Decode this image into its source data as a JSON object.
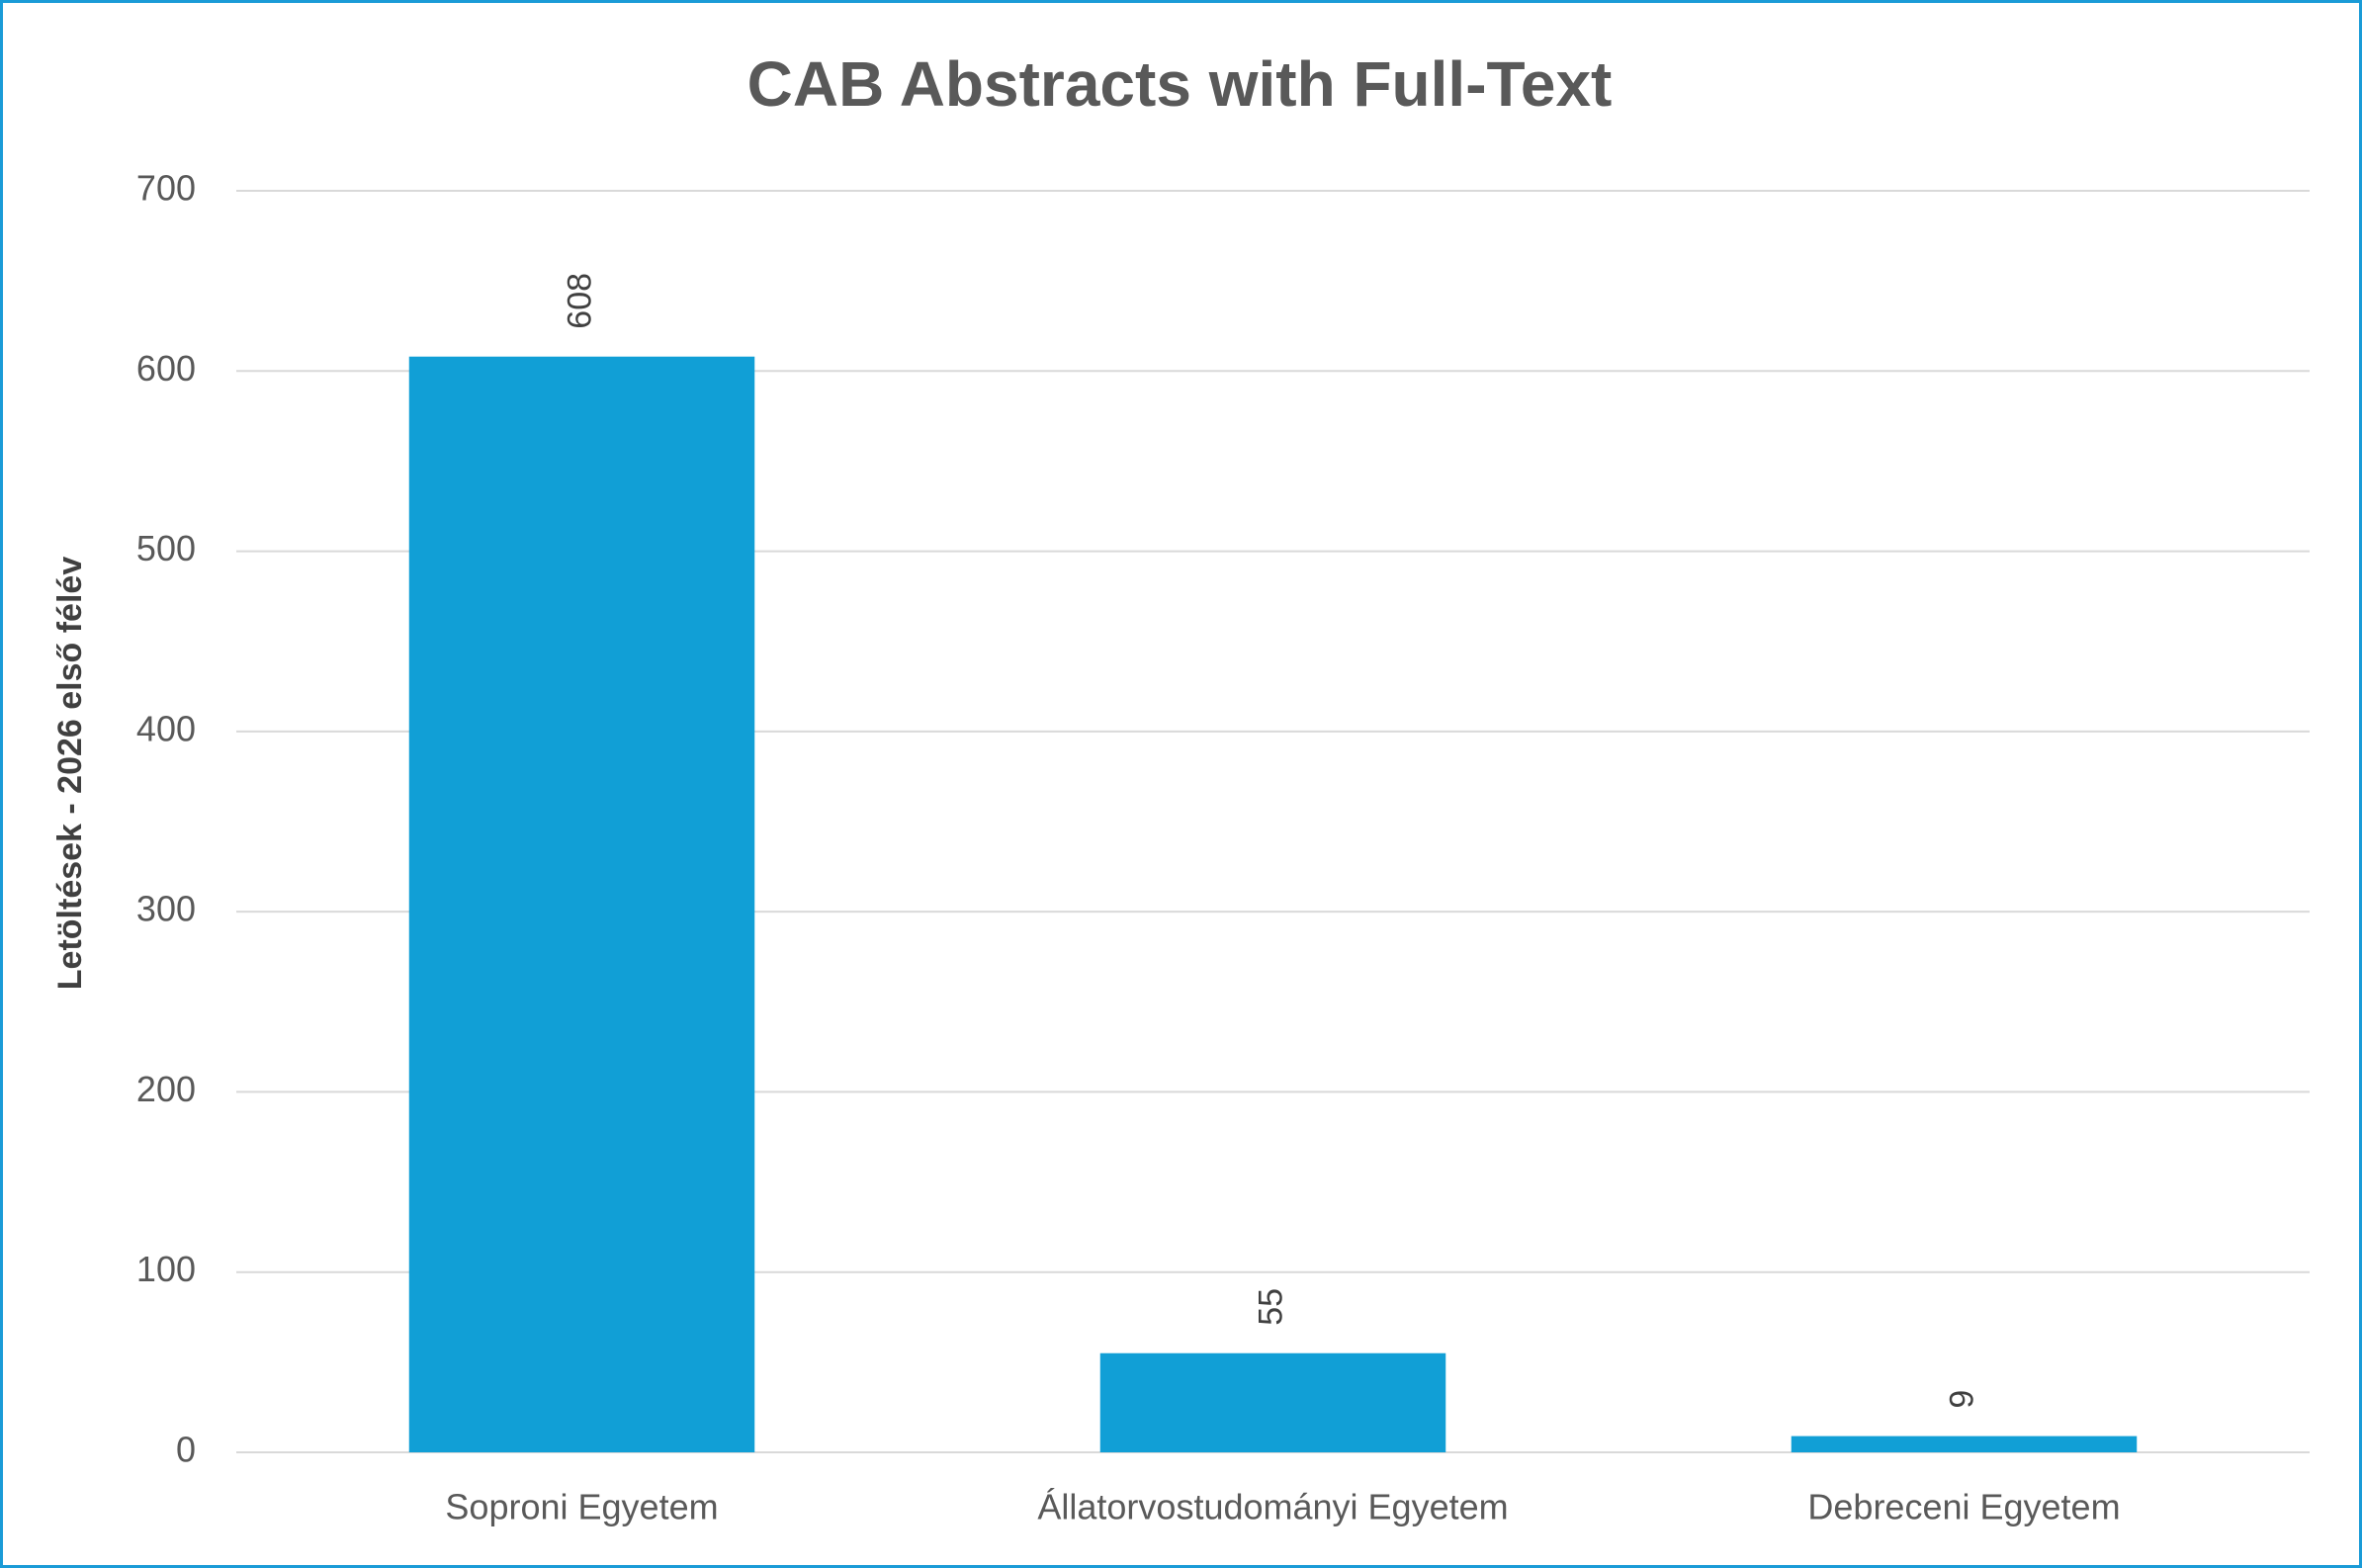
{
  "chart_data": {
    "type": "bar",
    "title": "CAB Abstracts with Full-Text",
    "y_label": "Letöltések - 2026 első félév",
    "categories": [
      "Soproni Egyetem",
      "Állatorvostudományi Egyetem",
      "Debreceni Egyetem"
    ],
    "values": [
      608,
      55,
      9
    ],
    "color": "#119fd6",
    "ylim": [
      0,
      700
    ],
    "yticks": [
      0,
      100,
      200,
      300,
      400,
      500,
      600,
      700
    ],
    "grid": true
  }
}
